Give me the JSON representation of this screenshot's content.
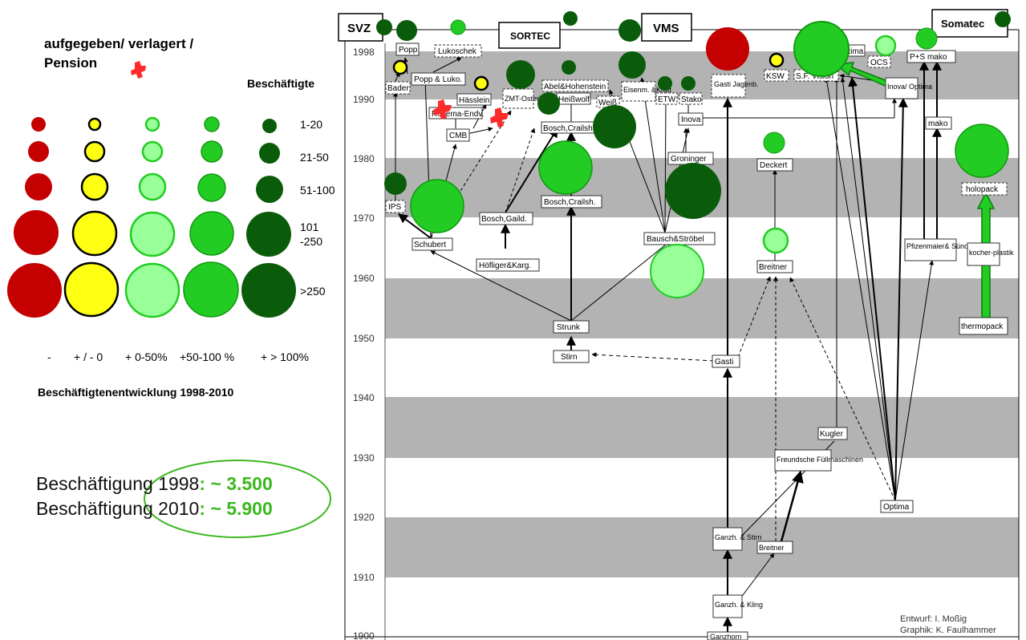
{
  "legend": {
    "title_line1": "aufgegeben/ verlagert  /",
    "title_line2": "Pension",
    "size_heading": "Beschäftigte",
    "size_labels": [
      "1-20",
      "21-50",
      "51-100",
      "101\n-250",
      ">250"
    ],
    "columns": [
      "-",
      "+ / - 0",
      "+ 0-50%",
      "+50-100 %",
      "+ > 100%"
    ],
    "column_colors": [
      "#c40000",
      "#ffff14",
      "#99ff99",
      "#22cc22",
      "#0a5c0a"
    ],
    "development_title": "Beschäftigtenentwicklung 1998-2010",
    "employment_1998_label": "Beschäftigung 1998",
    "employment_1998_value": ": ~ 3.500",
    "employment_2010_label": "Beschäftigung 2010",
    "employment_2010_value": ": ~ 5.900"
  },
  "groups": [
    "SVZ",
    "SORTEC",
    "VMS",
    "Somatec"
  ],
  "years": [
    "1998",
    "1990",
    "1980",
    "1970",
    "1960",
    "1950",
    "1940",
    "1930",
    "1920",
    "1910",
    "1900"
  ],
  "nodes": {
    "n01": "Popp",
    "n02": "Lukoschek",
    "n03": "Popp & Luko.",
    "n04": "Bader",
    "n05": "Hässlein",
    "n06": "Rovema-Endv.",
    "n07": "CMB",
    "n08": "ZMT-Osterlein",
    "n09": "Abel&Hohenstein",
    "n10": "Heißwolf",
    "n11": "Bosch,Crailsh.",
    "n12": "Weiß",
    "n13": "Eisenm. &Kraft",
    "n14": "ETW",
    "n15": "Stako",
    "n16": "Inova",
    "n17": "Gasti Jagenb.",
    "n18": "KSW",
    "n19": "S.F. Vision",
    "n20": "Optima",
    "n21": "OCS",
    "n22": "P+S mako",
    "n23": "Inova/ Optima",
    "n24": "mako",
    "n25": "Groninger",
    "n26": "Deckert",
    "n27": "IPS",
    "n28": "Schubert",
    "n29": "Bosch,Gaild.",
    "n30": "Bosch,Crailsh.",
    "n31": "Höfliger&Karg.",
    "n32": "Bausch&Ströbel",
    "n33": "Breitner",
    "n34": "holopack",
    "n35": "Pfizenmaier& Sünder",
    "n36": "kocher-plastik",
    "n37": "thermopack",
    "n38": "Strunk",
    "n39": "Stirn",
    "n40": "Gasti",
    "n41": "Kugler",
    "n42": "Freundsche Füllmaschinen",
    "n43": "Optima",
    "n44": "Ganzh. & Stirn",
    "n45": "Breitner",
    "n46": "Ganzh. & Kling",
    "n47": "Ganzhorn"
  },
  "credits": {
    "line1": "Entwurf: I. Moßig",
    "line2": "Graphik: K. Faulhammer"
  }
}
